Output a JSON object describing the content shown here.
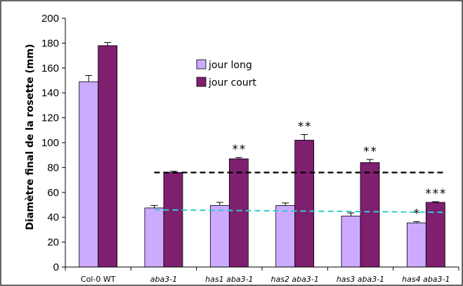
{
  "chart_data": {
    "type": "bar",
    "title": "",
    "xlabel": "",
    "ylabel": "Diamètre final de la rosette (mm)",
    "ylim": [
      0,
      200
    ],
    "yticks": [
      0,
      20,
      40,
      60,
      80,
      100,
      120,
      140,
      160,
      180,
      200
    ],
    "categories": [
      "Col-0 WT",
      "aba3-1",
      "has1 aba3-1",
      "has2 aba3-1",
      "has3 aba3-1",
      "has4 aba3-1"
    ],
    "category_italic": [
      false,
      true,
      true,
      true,
      true,
      true
    ],
    "grid": false,
    "legend_position": "top-center",
    "series": [
      {
        "name": "jour long",
        "color": "#ccaaff",
        "values": [
          149,
          47.5,
          49.5,
          49.5,
          41,
          35.5
        ],
        "errors": [
          5,
          2,
          2.5,
          2,
          2.5,
          1
        ],
        "significance": [
          "",
          "",
          "",
          "",
          "",
          "*"
        ]
      },
      {
        "name": "jour court",
        "color": "#7e1f6f",
        "values": [
          178,
          76,
          87,
          102,
          84,
          52
        ],
        "errors": [
          2.5,
          1,
          1,
          4.5,
          2.5,
          0.5
        ],
        "significance": [
          "",
          "",
          "**",
          "**",
          "**",
          "***"
        ]
      }
    ],
    "reference_lines": [
      {
        "style": "dashed",
        "color": "#000000",
        "from_category": 1,
        "to_category": 5,
        "y_start": 76,
        "y_end": 76
      },
      {
        "style": "dashed",
        "color": "#33cccc",
        "from_category": 1,
        "to_category": 5,
        "y_start": 46,
        "y_end": 44
      }
    ]
  }
}
